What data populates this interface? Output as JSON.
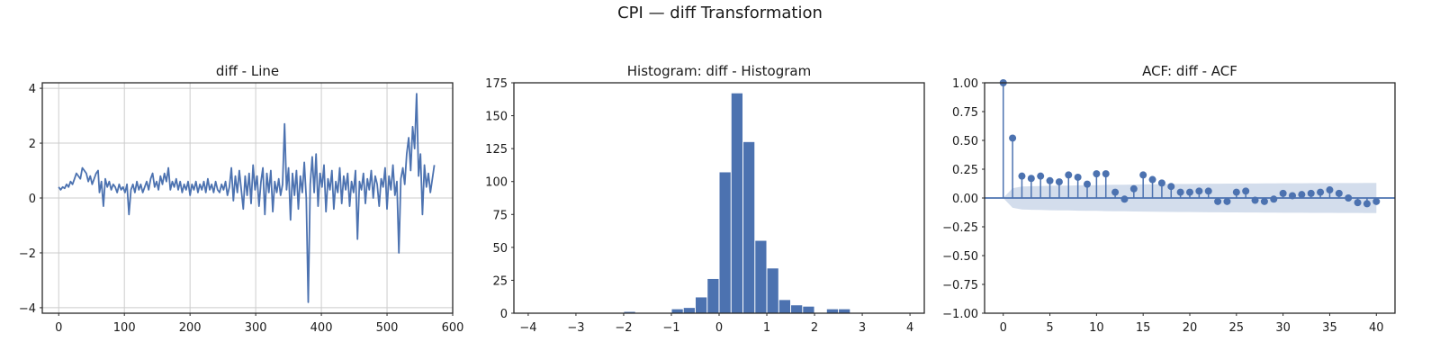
{
  "figure": {
    "suptitle": "CPI — diff Transformation"
  },
  "chart_data": [
    {
      "type": "line",
      "title": "diff - Line",
      "xlabel": "",
      "ylabel": "",
      "xlim": [
        -25,
        600
      ],
      "ylim": [
        -4.2,
        4.2
      ],
      "x_ticks": [
        0,
        100,
        200,
        300,
        400,
        500,
        600
      ],
      "y_ticks": [
        -4,
        -2,
        0,
        2,
        4
      ],
      "grid": true,
      "color": "#4c72b0",
      "points": [
        [
          0,
          0.4
        ],
        [
          3,
          0.3
        ],
        [
          6,
          0.4
        ],
        [
          9,
          0.35
        ],
        [
          12,
          0.5
        ],
        [
          15,
          0.4
        ],
        [
          18,
          0.6
        ],
        [
          21,
          0.5
        ],
        [
          24,
          0.7
        ],
        [
          27,
          0.9
        ],
        [
          30,
          0.8
        ],
        [
          33,
          0.7
        ],
        [
          36,
          1.1
        ],
        [
          39,
          1.0
        ],
        [
          42,
          0.9
        ],
        [
          45,
          0.6
        ],
        [
          48,
          0.8
        ],
        [
          51,
          0.5
        ],
        [
          54,
          0.7
        ],
        [
          57,
          0.9
        ],
        [
          60,
          1.0
        ],
        [
          62,
          0.2
        ],
        [
          65,
          0.6
        ],
        [
          68,
          -0.3
        ],
        [
          71,
          0.7
        ],
        [
          74,
          0.4
        ],
        [
          77,
          0.6
        ],
        [
          80,
          0.3
        ],
        [
          83,
          0.5
        ],
        [
          86,
          0.4
        ],
        [
          89,
          0.2
        ],
        [
          92,
          0.5
        ],
        [
          95,
          0.3
        ],
        [
          98,
          0.4
        ],
        [
          101,
          0.2
        ],
        [
          104,
          0.5
        ],
        [
          107,
          -0.6
        ],
        [
          110,
          0.3
        ],
        [
          113,
          0.5
        ],
        [
          116,
          0.2
        ],
        [
          119,
          0.6
        ],
        [
          122,
          0.3
        ],
        [
          125,
          0.5
        ],
        [
          128,
          0.2
        ],
        [
          131,
          0.4
        ],
        [
          134,
          0.6
        ],
        [
          137,
          0.3
        ],
        [
          140,
          0.7
        ],
        [
          143,
          0.9
        ],
        [
          146,
          0.4
        ],
        [
          149,
          0.6
        ],
        [
          152,
          0.3
        ],
        [
          155,
          0.8
        ],
        [
          158,
          0.5
        ],
        [
          161,
          0.9
        ],
        [
          164,
          0.6
        ],
        [
          167,
          1.1
        ],
        [
          170,
          0.3
        ],
        [
          173,
          0.6
        ],
        [
          176,
          0.4
        ],
        [
          179,
          0.7
        ],
        [
          182,
          0.3
        ],
        [
          185,
          0.6
        ],
        [
          188,
          0.2
        ],
        [
          191,
          0.5
        ],
        [
          194,
          0.3
        ],
        [
          197,
          0.6
        ],
        [
          200,
          0.1
        ],
        [
          203,
          0.5
        ],
        [
          206,
          0.3
        ],
        [
          209,
          0.6
        ],
        [
          212,
          0.2
        ],
        [
          215,
          0.5
        ],
        [
          218,
          0.3
        ],
        [
          221,
          0.6
        ],
        [
          224,
          0.2
        ],
        [
          227,
          0.7
        ],
        [
          230,
          0.3
        ],
        [
          233,
          0.5
        ],
        [
          236,
          0.2
        ],
        [
          239,
          0.6
        ],
        [
          242,
          0.3
        ],
        [
          245,
          0.2
        ],
        [
          248,
          0.5
        ],
        [
          251,
          0.3
        ],
        [
          254,
          0.6
        ],
        [
          257,
          0.1
        ],
        [
          260,
          0.4
        ],
        [
          263,
          1.1
        ],
        [
          266,
          -0.1
        ],
        [
          269,
          0.8
        ],
        [
          272,
          0.2
        ],
        [
          275,
          1.0
        ],
        [
          278,
          0.3
        ],
        [
          281,
          -0.4
        ],
        [
          284,
          0.8
        ],
        [
          287,
          0.1
        ],
        [
          290,
          0.9
        ],
        [
          293,
          -0.2
        ],
        [
          296,
          1.2
        ],
        [
          299,
          0.3
        ],
        [
          302,
          0.8
        ],
        [
          305,
          -0.3
        ],
        [
          308,
          0.6
        ],
        [
          311,
          1.1
        ],
        [
          314,
          -0.6
        ],
        [
          317,
          0.9
        ],
        [
          320,
          0.2
        ],
        [
          323,
          1.0
        ],
        [
          326,
          -0.5
        ],
        [
          329,
          0.6
        ],
        [
          332,
          0.2
        ],
        [
          335,
          0.7
        ],
        [
          338,
          0.1
        ],
        [
          341,
          0.5
        ],
        [
          344,
          2.7
        ],
        [
          347,
          0.3
        ],
        [
          350,
          1.1
        ],
        [
          353,
          -0.8
        ],
        [
          356,
          0.9
        ],
        [
          359,
          0.1
        ],
        [
          362,
          1.0
        ],
        [
          365,
          -0.4
        ],
        [
          368,
          0.8
        ],
        [
          371,
          0.2
        ],
        [
          374,
          1.3
        ],
        [
          377,
          0.0
        ],
        [
          380,
          -3.8
        ],
        [
          383,
          0.5
        ],
        [
          386,
          1.5
        ],
        [
          389,
          0.2
        ],
        [
          392,
          1.6
        ],
        [
          395,
          -0.3
        ],
        [
          398,
          0.9
        ],
        [
          401,
          0.4
        ],
        [
          404,
          1.2
        ],
        [
          407,
          -0.5
        ],
        [
          410,
          0.7
        ],
        [
          413,
          0.3
        ],
        [
          416,
          1.0
        ],
        [
          419,
          -0.4
        ],
        [
          422,
          0.6
        ],
        [
          425,
          0.2
        ],
        [
          428,
          1.1
        ],
        [
          431,
          -0.2
        ],
        [
          434,
          0.8
        ],
        [
          437,
          0.3
        ],
        [
          440,
          0.9
        ],
        [
          443,
          -0.3
        ],
        [
          446,
          0.6
        ],
        [
          449,
          0.2
        ],
        [
          452,
          1.0
        ],
        [
          455,
          -1.5
        ],
        [
          458,
          0.6
        ],
        [
          461,
          0.3
        ],
        [
          464,
          0.9
        ],
        [
          467,
          -0.2
        ],
        [
          470,
          0.7
        ],
        [
          473,
          0.3
        ],
        [
          476,
          1.0
        ],
        [
          479,
          0.0
        ],
        [
          482,
          0.8
        ],
        [
          485,
          0.5
        ],
        [
          488,
          -0.3
        ],
        [
          491,
          0.7
        ],
        [
          494,
          0.4
        ],
        [
          497,
          1.1
        ],
        [
          500,
          -0.4
        ],
        [
          503,
          0.8
        ],
        [
          506,
          0.3
        ],
        [
          509,
          1.2
        ],
        [
          512,
          0.1
        ],
        [
          515,
          0.6
        ],
        [
          518,
          -2.0
        ],
        [
          521,
          0.7
        ],
        [
          524,
          1.1
        ],
        [
          527,
          0.5
        ],
        [
          530,
          1.6
        ],
        [
          533,
          2.2
        ],
        [
          536,
          1.0
        ],
        [
          539,
          2.6
        ],
        [
          542,
          1.8
        ],
        [
          545,
          3.8
        ],
        [
          548,
          0.8
        ],
        [
          551,
          1.6
        ],
        [
          554,
          -0.6
        ],
        [
          557,
          1.2
        ],
        [
          560,
          0.4
        ],
        [
          563,
          0.9
        ],
        [
          566,
          0.2
        ],
        [
          569,
          0.7
        ],
        [
          572,
          1.2
        ]
      ]
    },
    {
      "type": "bar",
      "title": "Histogram: diff - Histogram",
      "xlabel": "",
      "ylabel": "",
      "xlim": [
        -4.3,
        4.3
      ],
      "ylim": [
        0,
        175
      ],
      "x_ticks": [
        -4,
        -3,
        -2,
        -1,
        0,
        1,
        2,
        3,
        4
      ],
      "y_ticks": [
        0,
        25,
        50,
        75,
        100,
        125,
        150,
        175
      ],
      "grid": false,
      "color": "#4c72b0",
      "bin_width": 0.25,
      "bins": [
        {
          "x0": -2.0,
          "count": 1
        },
        {
          "x0": -1.0,
          "count": 3
        },
        {
          "x0": -0.75,
          "count": 4
        },
        {
          "x0": -0.5,
          "count": 12
        },
        {
          "x0": -0.25,
          "count": 26
        },
        {
          "x0": 0.0,
          "count": 107
        },
        {
          "x0": 0.25,
          "count": 167
        },
        {
          "x0": 0.5,
          "count": 130
        },
        {
          "x0": 0.75,
          "count": 55
        },
        {
          "x0": 1.0,
          "count": 34
        },
        {
          "x0": 1.25,
          "count": 10
        },
        {
          "x0": 1.5,
          "count": 6
        },
        {
          "x0": 1.75,
          "count": 5
        },
        {
          "x0": 2.25,
          "count": 3
        },
        {
          "x0": 2.5,
          "count": 3
        }
      ]
    },
    {
      "type": "scatter",
      "title": "ACF: diff - ACF",
      "xlabel": "",
      "ylabel": "",
      "xlim": [
        -2,
        42
      ],
      "ylim": [
        -1.0,
        1.0
      ],
      "x_ticks": [
        0,
        5,
        10,
        15,
        20,
        25,
        30,
        35,
        40
      ],
      "y_ticks": [
        -1.0,
        -0.75,
        -0.5,
        -0.25,
        0.0,
        0.25,
        0.5,
        0.75,
        1.0
      ],
      "y_tick_labels": [
        "−1.00",
        "−0.75",
        "−0.50",
        "−0.25",
        "0.00",
        "0.25",
        "0.50",
        "0.75",
        "1.00"
      ],
      "grid": false,
      "color": "#4c72b0",
      "band_color": "#d3ddec",
      "lags": [
        0,
        1,
        2,
        3,
        4,
        5,
        6,
        7,
        8,
        9,
        10,
        11,
        12,
        13,
        14,
        15,
        16,
        17,
        18,
        19,
        20,
        21,
        22,
        23,
        24,
        25,
        26,
        27,
        28,
        29,
        30,
        31,
        32,
        33,
        34,
        35,
        36,
        37,
        38,
        39,
        40
      ],
      "acf": [
        1.0,
        0.52,
        0.19,
        0.17,
        0.19,
        0.15,
        0.14,
        0.2,
        0.18,
        0.12,
        0.21,
        0.21,
        0.05,
        -0.01,
        0.08,
        0.2,
        0.16,
        0.13,
        0.1,
        0.05,
        0.05,
        0.06,
        0.06,
        -0.03,
        -0.03,
        0.05,
        0.06,
        -0.02,
        -0.03,
        -0.01,
        0.04,
        0.02,
        0.03,
        0.04,
        0.05,
        0.07,
        0.04,
        0.0,
        -0.04,
        -0.05,
        -0.03
      ],
      "confidence": [
        0.0,
        0.085,
        0.1,
        0.102,
        0.104,
        0.106,
        0.107,
        0.108,
        0.11,
        0.111,
        0.112,
        0.114,
        0.115,
        0.116,
        0.117,
        0.118,
        0.119,
        0.12,
        0.121,
        0.122,
        0.122,
        0.123,
        0.124,
        0.124,
        0.125,
        0.125,
        0.126,
        0.126,
        0.127,
        0.127,
        0.128,
        0.128,
        0.128,
        0.129,
        0.129,
        0.129,
        0.13,
        0.13,
        0.13,
        0.131,
        0.131
      ]
    }
  ]
}
